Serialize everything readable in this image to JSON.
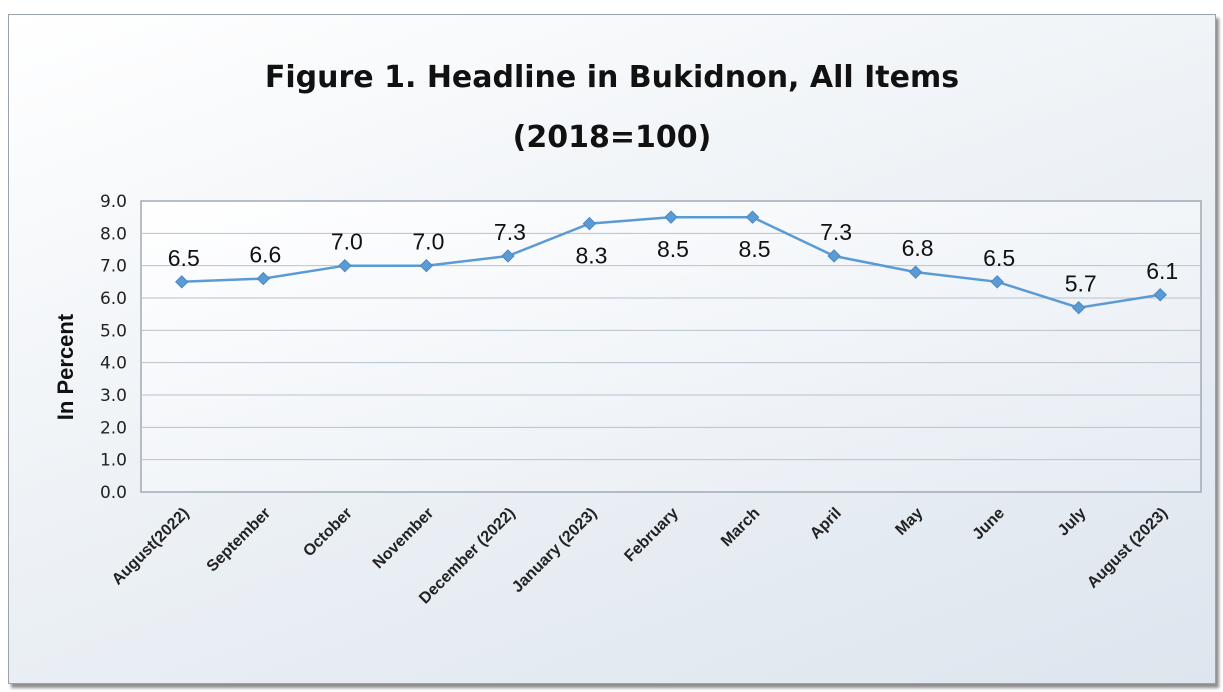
{
  "chart_data": {
    "type": "line",
    "title": "Figure 1. Headline in Bukidnon, All Items",
    "subtitle": "(2018=100)",
    "xlabel": "",
    "ylabel": "In Percent",
    "ylim": [
      0,
      9
    ],
    "yticks": [
      "0.0",
      "1.0",
      "2.0",
      "3.0",
      "4.0",
      "5.0",
      "6.0",
      "7.0",
      "8.0",
      "9.0"
    ],
    "grid": true,
    "legend": "none",
    "line_color": "#5b9bd5",
    "categories": [
      "August(2022)",
      "September",
      "October",
      "November",
      "December (2022)",
      "January (2023)",
      "February",
      "March",
      "April",
      "May",
      "June",
      "July",
      "August (2023)"
    ],
    "series": [
      {
        "values": [
          6.5,
          6.6,
          7.0,
          7.0,
          7.3,
          8.3,
          8.5,
          8.5,
          7.3,
          6.8,
          6.5,
          5.7,
          6.1
        ],
        "labels": [
          "6.5",
          "6.6",
          "7.0",
          "7.0",
          "7.3",
          "8.3",
          "8.5",
          "8.5",
          "7.3",
          "6.8",
          "6.5",
          "5.7",
          "6.1"
        ]
      }
    ]
  }
}
